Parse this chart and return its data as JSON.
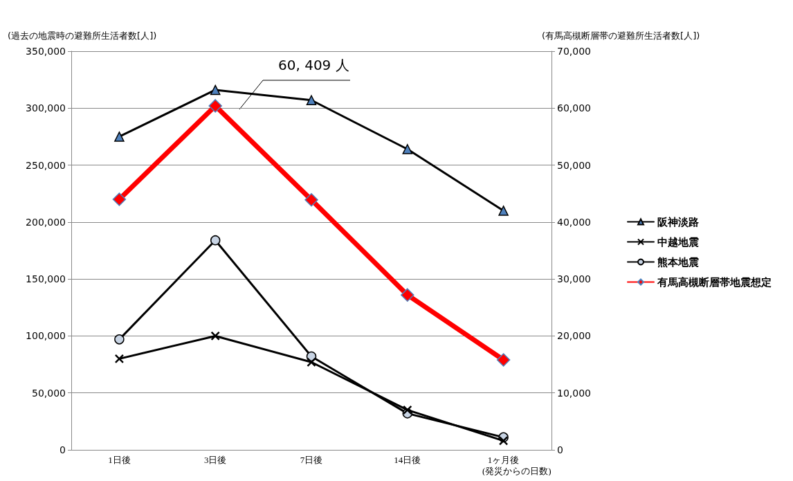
{
  "chart_data": {
    "type": "line",
    "ylabel": "(過去の地震時の避難所生活者数[人])",
    "y2label": "(有馬高槻断層帯の避難所生活者数[人])",
    "xlabel": "(発災からの日数)",
    "categories": [
      "1日後",
      "3日後",
      "7日後",
      "14日後",
      "1ヶ月後"
    ],
    "series": [
      {
        "name": "阪神淡路",
        "color": "#000000",
        "marker": "triangle",
        "values": [
          275000,
          316000,
          307000,
          264000,
          210000
        ]
      },
      {
        "name": "中越地震",
        "color": "#000000",
        "marker": "cross",
        "values": [
          80000,
          100000,
          77000,
          35000,
          8000
        ]
      },
      {
        "name": "熊本地震",
        "color": "#000000",
        "marker": "circle",
        "values": [
          97000,
          184000,
          82000,
          32000,
          11000
        ]
      },
      {
        "name": "有馬高槻断層帯地震想定",
        "color": "#ff0000",
        "marker": "diamond",
        "axis": "y2",
        "values": [
          44000,
          60409,
          43900,
          27200,
          15800
        ]
      }
    ],
    "ylim": [
      0,
      350000
    ],
    "yticks": [
      0,
      {
        "value": 50000,
        "label": "50,000"
      },
      {
        "value": 100000,
        "label": "100,000"
      },
      {
        "value": 150000,
        "label": "150,000"
      },
      {
        "value": 200000,
        "label": "200,000"
      },
      {
        "value": 250000,
        "label": "250,000"
      },
      {
        "value": 300000,
        "label": "300,000"
      },
      {
        "value": 350000,
        "label": "350,000"
      }
    ],
    "y2lim": [
      0,
      70000
    ],
    "y2ticks": [
      0,
      {
        "value": 10000,
        "label": "10,000"
      },
      {
        "value": 20000,
        "label": "20,000"
      },
      {
        "value": 30000,
        "label": "30,000"
      },
      {
        "value": 40000,
        "label": "40,000"
      },
      {
        "value": 50000,
        "label": "50,000"
      },
      {
        "value": 60000,
        "label": "60,000"
      },
      {
        "value": 70000,
        "label": "70,000"
      }
    ],
    "annotations": [
      "60, 409 人"
    ],
    "grid": "y",
    "legend": "right"
  }
}
